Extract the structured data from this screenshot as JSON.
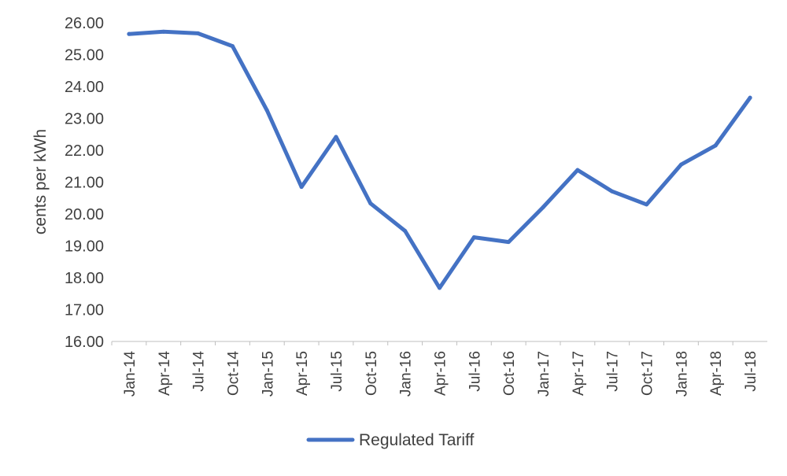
{
  "chart_data": {
    "type": "line",
    "title": "",
    "xlabel": "",
    "ylabel": "cents per kWh",
    "ylim": [
      16,
      26
    ],
    "yticks": [
      "16.00",
      "17.00",
      "18.00",
      "19.00",
      "20.00",
      "21.00",
      "22.00",
      "23.00",
      "24.00",
      "25.00",
      "26.00"
    ],
    "categories": [
      "Jan-14",
      "Apr-14",
      "Jul-14",
      "Oct-14",
      "Jan-15",
      "Apr-15",
      "Jul-15",
      "Oct-15",
      "Jan-16",
      "Apr-16",
      "Jul-16",
      "Oct-16",
      "Jan-17",
      "Apr-17",
      "Jul-17",
      "Oct-17",
      "Jan-18",
      "Apr-18",
      "Jul-18"
    ],
    "series": [
      {
        "name": "Regulated Tariff",
        "color": "#4472C4",
        "values": [
          25.65,
          25.72,
          25.67,
          25.27,
          23.25,
          20.85,
          22.42,
          20.33,
          19.47,
          17.68,
          19.27,
          19.12,
          20.21,
          21.38,
          20.71,
          20.3,
          21.55,
          22.15,
          23.65
        ]
      }
    ],
    "grid": false,
    "legend": "bottom"
  }
}
